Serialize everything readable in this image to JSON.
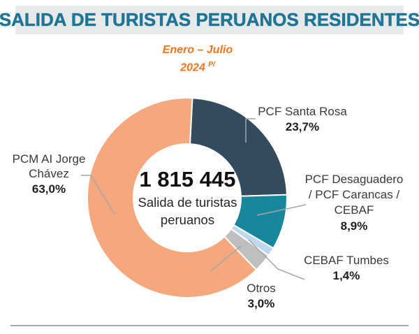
{
  "header": {
    "title": "SALIDA DE TURISTAS PERUANOS RESIDENTES",
    "period": "Enero – Julio",
    "year": "2024",
    "year_note": "P/"
  },
  "colors": {
    "title_text": "#177A9C",
    "title_bar_bg": "#E7EAEB",
    "subtitle_orange": "#F1751C",
    "label_text": "#3A3A3A",
    "pct_text": "#1F1F1F",
    "leader_line": "#A6A6A6",
    "divider": "#A7A7A7"
  },
  "chart_data": {
    "type": "pie",
    "variant": "donut",
    "title": "SALIDA DE TURISTAS PERUANOS RESIDENTES",
    "subtitle": "Enero – Julio 2024 P/",
    "units": "%",
    "start_angle_deg": 3,
    "direction": "clockwise",
    "center_label": {
      "total": "1 815 445",
      "caption": "Salida de turistas peruanos"
    },
    "slices": [
      {
        "id": "pcf-santa-rosa",
        "name": "PCF Santa Rosa",
        "value": 23.7,
        "pct_label": "23,7%",
        "color": "#344B5D"
      },
      {
        "id": "pcf-desaguadero-carancas-cebaf",
        "name": "PCF Desaguadero / PCF Carancas / CEBAF",
        "lines": [
          "PCF Desaguadero",
          "/ PCF Carancas /",
          "CEBAF"
        ],
        "value": 8.9,
        "pct_label": "8,9%",
        "color": "#17879B"
      },
      {
        "id": "cebaf-tumbes",
        "name": "CEBAF Tumbes",
        "value": 1.4,
        "pct_label": "1,4%",
        "color": "#BDD7EE"
      },
      {
        "id": "otros",
        "name": "Otros",
        "value": 3.0,
        "pct_label": "3,0%",
        "color": "#BFBFBF"
      },
      {
        "id": "pcm-ai-jorge-chavez",
        "name": "PCM AI Jorge Chávez",
        "lines": [
          "PCM AI Jorge",
          "Chávez"
        ],
        "value": 63.0,
        "pct_label": "63,0%",
        "color": "#F5A87E"
      }
    ]
  }
}
